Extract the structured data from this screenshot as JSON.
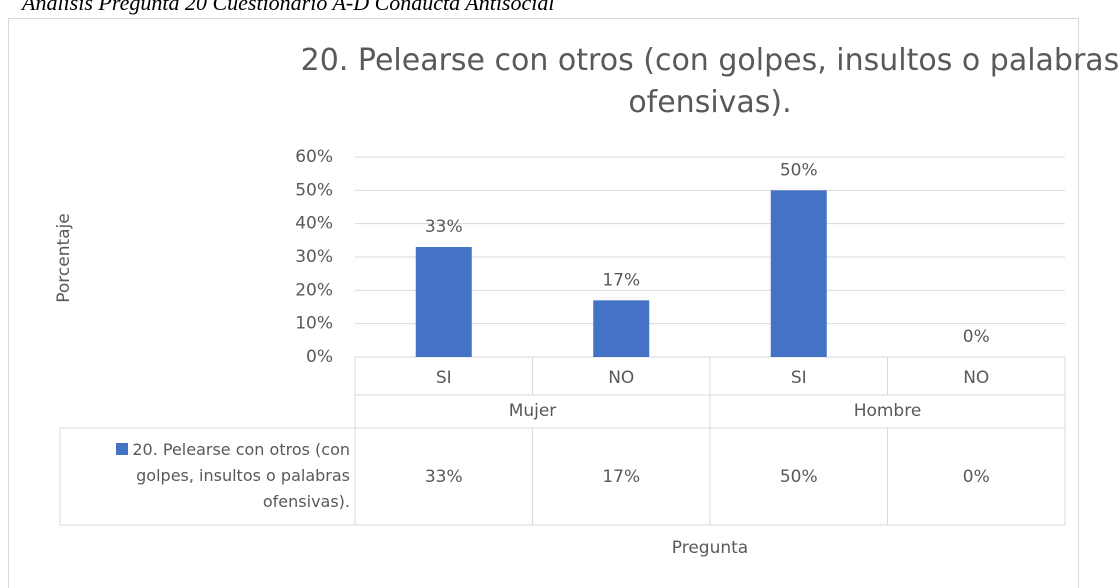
{
  "caption": "Análisis Pregunta 20 Cuestionario A-D Conducta Antisocial",
  "chart_data": {
    "type": "bar",
    "title": "20. Pelearse con otros (con golpes, insultos o palabras ofensivas).",
    "ylabel": "Porcentaje",
    "xlabel": "Pregunta",
    "categories": [
      "SI",
      "NO",
      "SI",
      "NO"
    ],
    "groups": [
      "Mujer",
      "Hombre"
    ],
    "series": [
      {
        "name": "20. Pelearse con otros (con golpes, insultos o palabras ofensivas).",
        "color": "#4472c4",
        "values": [
          33,
          17,
          50,
          0
        ],
        "value_labels": [
          "33%",
          "17%",
          "50%",
          "0%"
        ]
      }
    ],
    "ylim": [
      0,
      60
    ],
    "yticks": [
      {
        "value": 0,
        "label": "0%"
      },
      {
        "value": 10,
        "label": "10%"
      },
      {
        "value": 20,
        "label": "20%"
      },
      {
        "value": 30,
        "label": "30%"
      },
      {
        "value": 40,
        "label": "40%"
      },
      {
        "value": 50,
        "label": "50%"
      },
      {
        "value": 60,
        "label": "60%"
      }
    ],
    "grid": true,
    "data_table": true
  }
}
